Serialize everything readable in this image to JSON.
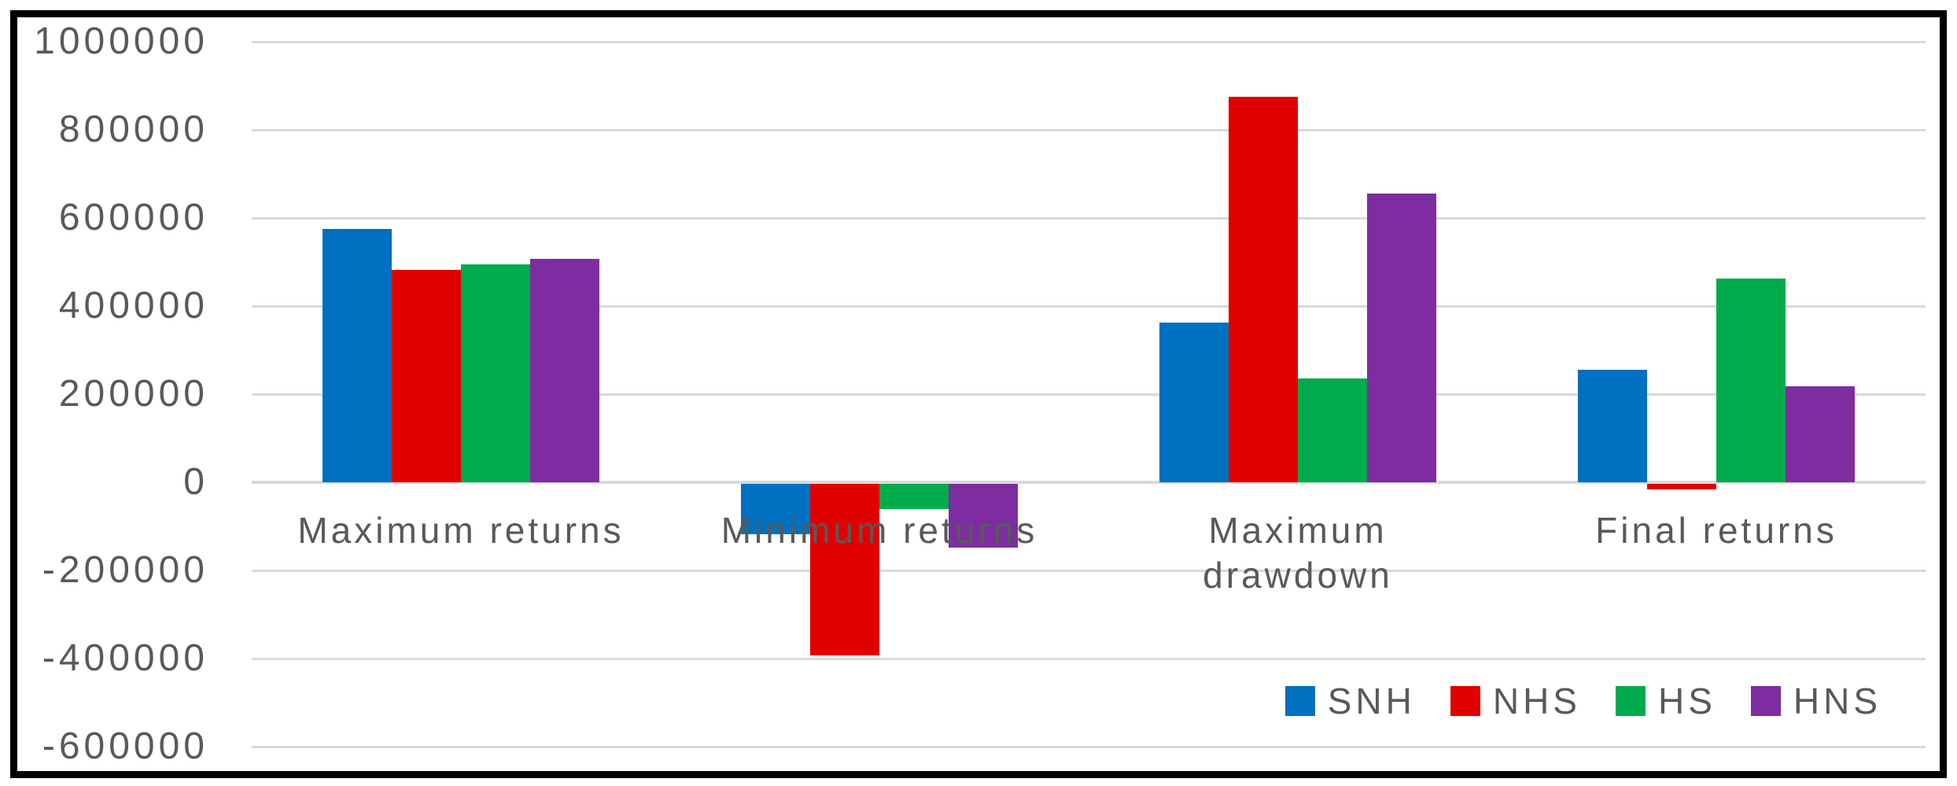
{
  "chart_data": {
    "type": "bar",
    "title": "",
    "xlabel": "",
    "ylabel": "",
    "categories": [
      "Maximum returns",
      "Minimum returns",
      "Maximum drawdown",
      "Final returns"
    ],
    "series": [
      {
        "name": "SNH",
        "color": "#0070C0",
        "values": [
          575000,
          -115000,
          363000,
          256000
        ]
      },
      {
        "name": "NHS",
        "color": "#E00000",
        "values": [
          482000,
          -390000,
          875000,
          -12000
        ]
      },
      {
        "name": "HS",
        "color": "#00AB4D",
        "values": [
          494000,
          -58000,
          235000,
          462000
        ]
      },
      {
        "name": "HNS",
        "color": "#7D2DA0",
        "values": [
          507000,
          -145000,
          655000,
          218000
        ]
      }
    ],
    "ylim": [
      -600000,
      1000000
    ],
    "ytick_step": 200000,
    "ytick_labels": [
      "1000000",
      "800000",
      "600000",
      "400000",
      "200000",
      "0",
      "-200000",
      "-400000",
      "-600000"
    ],
    "grid": "horizontal",
    "grid_color": "#D9D9D9",
    "text_color": "#595959",
    "background_color": "#FFFFFF",
    "frame_border_color": "#000000",
    "legend_position": "bottom-right",
    "legend_items": [
      "SNH",
      "NHS",
      "HS",
      "HNS"
    ]
  }
}
